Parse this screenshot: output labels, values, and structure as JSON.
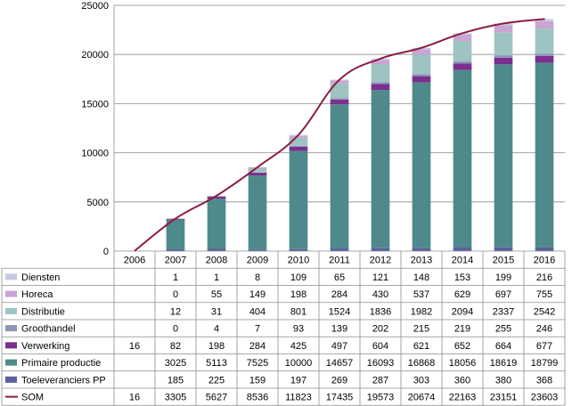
{
  "chart_data": {
    "type": "bar",
    "stacked": true,
    "categories": [
      "2006",
      "2007",
      "2008",
      "2009",
      "2010",
      "2011",
      "2012",
      "2013",
      "2014",
      "2015",
      "2016"
    ],
    "ylim": [
      0,
      25000
    ],
    "yticks": [
      "0",
      "5000",
      "10000",
      "15000",
      "20000",
      "25000"
    ],
    "grid": true,
    "legend": "data-table-left",
    "series": [
      {
        "name": "Toeleveranciers PP",
        "color": "#5b5f9e",
        "kind": "bar",
        "values": [
          null,
          185,
          225,
          159,
          197,
          269,
          287,
          303,
          360,
          380,
          368
        ],
        "labels": [
          "",
          "185",
          "225",
          "159",
          "197",
          "269",
          "287",
          "303",
          "360",
          "380",
          "368"
        ]
      },
      {
        "name": "Primaire productie",
        "color": "#4e8a8c",
        "kind": "bar",
        "values": [
          null,
          3025,
          5113,
          7525,
          10000,
          14657,
          16093,
          16868,
          18056,
          18619,
          18799
        ],
        "labels": [
          "",
          "3025",
          "5113",
          "7525",
          "10000",
          "14657",
          "16093",
          "16868",
          "18056",
          "18619",
          "18799"
        ]
      },
      {
        "name": "Verwerking",
        "color": "#7b2f8e",
        "kind": "bar",
        "values": [
          16,
          82,
          198,
          284,
          425,
          497,
          604,
          621,
          652,
          664,
          677
        ],
        "labels": [
          "16",
          "82",
          "198",
          "284",
          "425",
          "497",
          "604",
          "621",
          "652",
          "664",
          "677"
        ]
      },
      {
        "name": "Groothandel",
        "color": "#8e93b8",
        "kind": "bar",
        "values": [
          null,
          0,
          4,
          7,
          93,
          139,
          202,
          215,
          219,
          255,
          246
        ],
        "labels": [
          "",
          "0",
          "4",
          "7",
          "93",
          "139",
          "202",
          "215",
          "219",
          "255",
          "246"
        ]
      },
      {
        "name": "Distributie",
        "color": "#9ec3c3",
        "kind": "bar",
        "values": [
          null,
          12,
          31,
          404,
          801,
          1524,
          1836,
          1982,
          2094,
          2337,
          2542
        ],
        "labels": [
          "",
          "12",
          "31",
          "404",
          "801",
          "1524",
          "1836",
          "1982",
          "2094",
          "2337",
          "2542"
        ]
      },
      {
        "name": "Horeca",
        "color": "#c9a5d3",
        "kind": "bar",
        "values": [
          null,
          0,
          55,
          149,
          198,
          284,
          430,
          537,
          629,
          697,
          755
        ],
        "labels": [
          "",
          "0",
          "55",
          "149",
          "198",
          "284",
          "430",
          "537",
          "629",
          "697",
          "755"
        ]
      },
      {
        "name": "Diensten",
        "color": "#c6c9e0",
        "kind": "bar",
        "values": [
          null,
          1,
          1,
          8,
          109,
          65,
          121,
          148,
          153,
          199,
          216
        ],
        "labels": [
          "",
          "1",
          "1",
          "8",
          "109",
          "65",
          "121",
          "148",
          "153",
          "199",
          "216"
        ]
      },
      {
        "name": "SOM",
        "color": "#8c1d40",
        "kind": "line",
        "values": [
          16,
          3305,
          5627,
          8536,
          11823,
          17435,
          19573,
          20674,
          22163,
          23151,
          23603
        ],
        "labels": [
          "16",
          "3305",
          "5627",
          "8536",
          "11823",
          "17435",
          "19573",
          "20674",
          "22163",
          "23151",
          "23603"
        ]
      }
    ],
    "table_row_order": [
      "Diensten",
      "Horeca",
      "Distributie",
      "Groothandel",
      "Verwerking",
      "Primaire productie",
      "Toeleveranciers PP",
      "SOM"
    ]
  }
}
